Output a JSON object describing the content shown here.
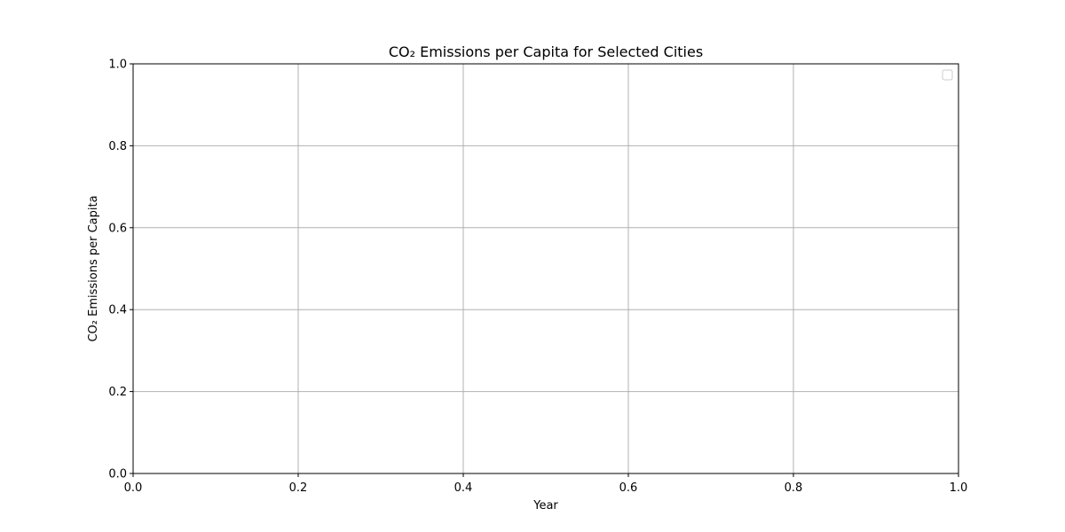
{
  "chart_data": {
    "type": "line",
    "title": "CO₂ Emissions per Capita for Selected Cities",
    "xlabel": "Year",
    "ylabel": "CO₂ Emissions per Capita",
    "xlim": [
      0.0,
      1.0
    ],
    "ylim": [
      0.0,
      1.0
    ],
    "x_ticks": [
      "0.0",
      "0.2",
      "0.4",
      "0.6",
      "0.8",
      "1.0"
    ],
    "y_ticks": [
      "0.0",
      "0.2",
      "0.4",
      "0.6",
      "0.8",
      "1.0"
    ],
    "series": [],
    "grid": true,
    "legend": {
      "placement": "top-right",
      "entries": []
    },
    "colors": {
      "grid": "#b0b0b0",
      "axis": "#000000",
      "legend_border": "#cccccc"
    }
  }
}
